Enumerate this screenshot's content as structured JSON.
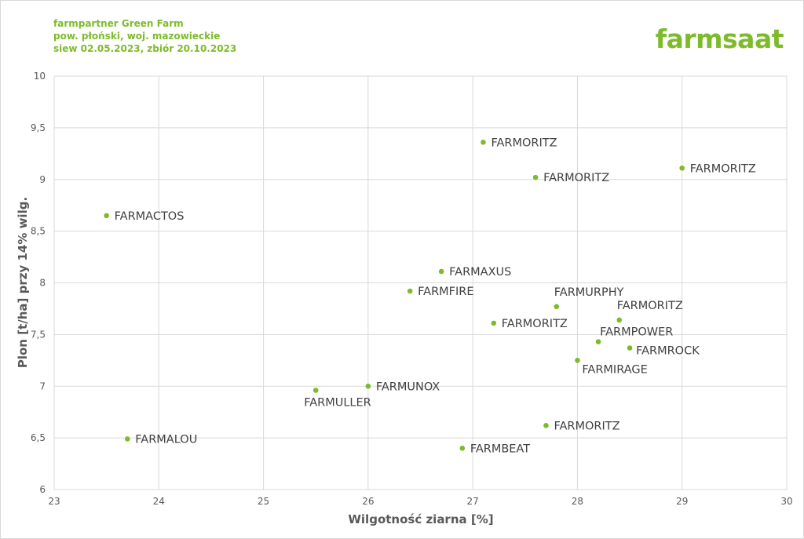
{
  "header": {
    "line1": "farmpartner Green Farm",
    "line2": "pow. płoński, woj. mazowieckie",
    "line3": "siew 02.05.2023, zbiór 20.10.2023"
  },
  "logo": "farmsaat",
  "colors": {
    "accent": "#7dbb2b",
    "grid": "#d9d9d9",
    "text": "#595959"
  },
  "chart_data": {
    "type": "scatter",
    "xlabel": "Wilgotność ziarna [%]",
    "ylabel": "Plon [t/ha] przy 14% wilg.",
    "xlim": [
      23,
      30
    ],
    "ylim": [
      6,
      10
    ],
    "xticks": [
      "23",
      "24",
      "25",
      "26",
      "27",
      "28",
      "29",
      "30"
    ],
    "yticks": [
      "6",
      "6,5",
      "7",
      "7,5",
      "8",
      "8,5",
      "9",
      "9,5",
      "10"
    ],
    "grid": true,
    "points": [
      {
        "label": "FARMORITZ",
        "x": 27.1,
        "y": 9.36
      },
      {
        "label": "FARMORITZ",
        "x": 27.6,
        "y": 9.02
      },
      {
        "label": "FARMORITZ",
        "x": 29.0,
        "y": 9.11
      },
      {
        "label": "FARMACTOS",
        "x": 23.5,
        "y": 8.65
      },
      {
        "label": "FARMAXUS",
        "x": 26.7,
        "y": 8.11
      },
      {
        "label": "FARMFIRE",
        "x": 26.4,
        "y": 7.92
      },
      {
        "label": "FARMURPHY",
        "x": 27.8,
        "y": 7.77
      },
      {
        "label": "FARMORITZ",
        "x": 28.4,
        "y": 7.64
      },
      {
        "label": "FARMORITZ",
        "x": 27.2,
        "y": 7.61
      },
      {
        "label": "FARMPOWER",
        "x": 28.2,
        "y": 7.43
      },
      {
        "label": "FARMROCK",
        "x": 28.5,
        "y": 7.37
      },
      {
        "label": "FARMIRAGE",
        "x": 28.0,
        "y": 7.25
      },
      {
        "label": "FARMUNOX",
        "x": 26.0,
        "y": 7.0
      },
      {
        "label": "FARMULLER",
        "x": 25.5,
        "y": 6.96
      },
      {
        "label": "FARMORITZ",
        "x": 27.7,
        "y": 6.62
      },
      {
        "label": "FARMALOU",
        "x": 23.7,
        "y": 6.49
      },
      {
        "label": "FARMBEAT",
        "x": 26.9,
        "y": 6.4
      }
    ]
  }
}
